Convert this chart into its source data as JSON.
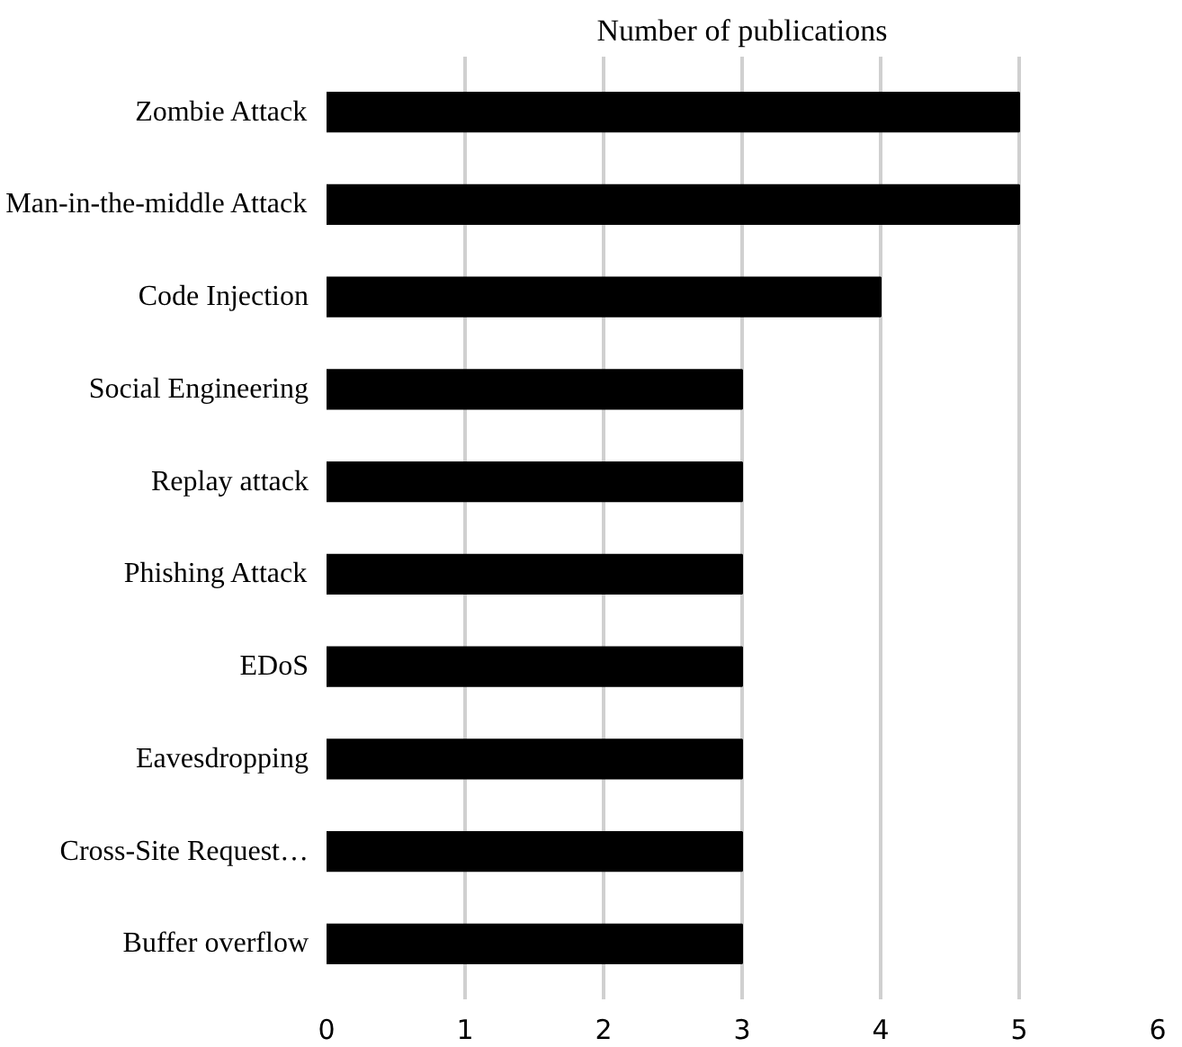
{
  "chart_data": {
    "type": "bar",
    "orientation": "horizontal",
    "title": "Number of publications",
    "categories": [
      "Zombie Attack",
      "Man-in-the-middle Attack",
      "Code Injection",
      "Social Engineering",
      "Replay attack",
      "Phishing Attack",
      "EDoS",
      "Eavesdropping",
      "Cross-Site Request…",
      "Buffer overflow"
    ],
    "values": [
      5,
      5,
      4,
      3,
      3,
      3,
      3,
      3,
      3,
      3
    ],
    "color": "#000000",
    "xlim": [
      0,
      6
    ],
    "xticks": [
      0,
      1,
      2,
      3,
      4,
      5,
      6
    ],
    "grid": "x"
  }
}
